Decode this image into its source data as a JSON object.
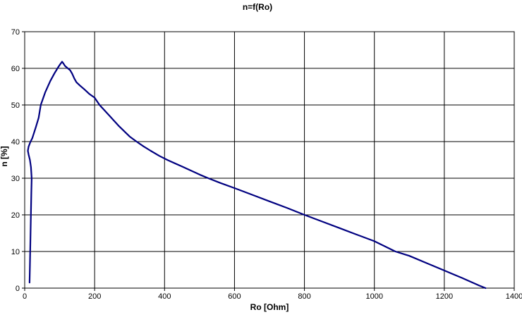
{
  "chart_data": {
    "type": "line",
    "title": "n=f(Ro)",
    "xlabel": "Ro [Ohm]",
    "ylabel": "n [%]",
    "xlim": [
      0,
      1400
    ],
    "ylim": [
      0,
      70
    ],
    "x_ticks": [
      0,
      200,
      400,
      600,
      800,
      1000,
      1200,
      1400
    ],
    "y_ticks": [
      0,
      10,
      20,
      30,
      40,
      50,
      60,
      70
    ],
    "grid": true,
    "legend": false,
    "line_color": "#000080",
    "grid_color": "#000000",
    "background_color": "#ffffff",
    "series": [
      {
        "name": "n",
        "points": [
          [
            14,
            1.5
          ],
          [
            15,
            6
          ],
          [
            16,
            11
          ],
          [
            17,
            16
          ],
          [
            18,
            21
          ],
          [
            19,
            26
          ],
          [
            20,
            30
          ],
          [
            18,
            33
          ],
          [
            15,
            35
          ],
          [
            11,
            36.5
          ],
          [
            9,
            37.5
          ],
          [
            11,
            38.6
          ],
          [
            16,
            39.8
          ],
          [
            22,
            41
          ],
          [
            32,
            44
          ],
          [
            40,
            46.5
          ],
          [
            46,
            50
          ],
          [
            59,
            53.5
          ],
          [
            73,
            56.5
          ],
          [
            85,
            58.6
          ],
          [
            95,
            60.2
          ],
          [
            102,
            61.2
          ],
          [
            107,
            61.8
          ],
          [
            111,
            61.3
          ],
          [
            115,
            60.7
          ],
          [
            122,
            60.1
          ],
          [
            130,
            59.5
          ],
          [
            136,
            58.5
          ],
          [
            142,
            57.2
          ],
          [
            148,
            56.2
          ],
          [
            158,
            55.3
          ],
          [
            170,
            54.3
          ],
          [
            185,
            53
          ],
          [
            200,
            52
          ],
          [
            214,
            50
          ],
          [
            240,
            47.3
          ],
          [
            270,
            44.2
          ],
          [
            300,
            41.4
          ],
          [
            320,
            40
          ],
          [
            340,
            38.7
          ],
          [
            360,
            37.5
          ],
          [
            385,
            36.1
          ],
          [
            410,
            34.9
          ],
          [
            450,
            33.2
          ],
          [
            500,
            31
          ],
          [
            525,
            30
          ],
          [
            560,
            28.7
          ],
          [
            600,
            27.3
          ],
          [
            650,
            25.5
          ],
          [
            700,
            23.7
          ],
          [
            750,
            21.9
          ],
          [
            800,
            20
          ],
          [
            850,
            18.2
          ],
          [
            900,
            16.4
          ],
          [
            950,
            14.6
          ],
          [
            1000,
            12.8
          ],
          [
            1060,
            10
          ],
          [
            1100,
            8.8
          ],
          [
            1150,
            6.8
          ],
          [
            1200,
            4.8
          ],
          [
            1250,
            2.8
          ],
          [
            1300,
            0.7
          ],
          [
            1318,
            0
          ]
        ]
      }
    ]
  }
}
